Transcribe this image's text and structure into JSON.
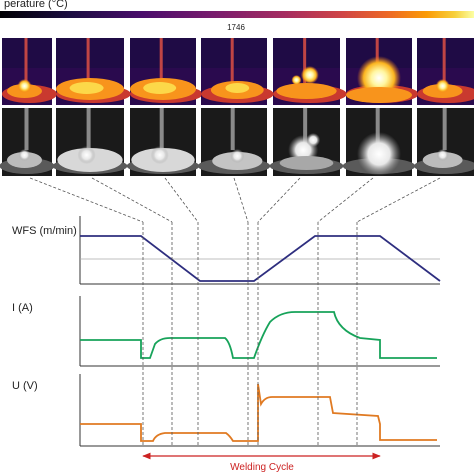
{
  "colorbar": {
    "label_fragment": "perature (°C)",
    "tick_value": "1746"
  },
  "colors": {
    "wfs": "#2e2e7f",
    "current": "#17a35a",
    "voltage": "#e07a22",
    "cycle": "#cc2222",
    "dashed": "#555555",
    "axis": "#333333"
  },
  "images": {
    "thermal_frames": [
      {
        "pool": "small"
      },
      {
        "pool": "wide"
      },
      {
        "pool": "wide"
      },
      {
        "pool": "medium"
      },
      {
        "pool": "spatter"
      },
      {
        "pool": "arc-bright"
      },
      {
        "pool": "small"
      }
    ],
    "visible_frames": [
      {
        "pool": "small"
      },
      {
        "pool": "wide"
      },
      {
        "pool": "wide"
      },
      {
        "pool": "medium"
      },
      {
        "pool": "spatter"
      },
      {
        "pool": "arc-bright"
      },
      {
        "pool": "small"
      }
    ]
  },
  "plots": {
    "wfs": {
      "label": "WFS (m/min)"
    },
    "current": {
      "label": "I (A)"
    },
    "voltage": {
      "label": "U (V)"
    }
  },
  "cycle": {
    "label": "Welding Cycle"
  }
}
